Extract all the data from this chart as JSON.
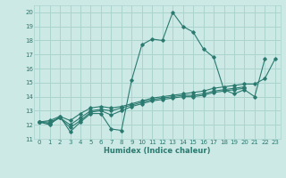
{
  "xlabel": "Humidex (Indice chaleur)",
  "background_color": "#cce9e5",
  "grid_color": "#aad4cf",
  "line_color": "#2a7a70",
  "xlim": [
    -0.5,
    23.5
  ],
  "ylim": [
    11,
    20.5
  ],
  "yticks": [
    11,
    12,
    13,
    14,
    15,
    16,
    17,
    18,
    19,
    20
  ],
  "xticks": [
    0,
    1,
    2,
    3,
    4,
    5,
    6,
    7,
    8,
    9,
    10,
    11,
    12,
    13,
    14,
    15,
    16,
    17,
    18,
    19,
    20,
    21,
    22,
    23
  ],
  "series": [
    [
      12.2,
      12.0,
      12.6,
      11.5,
      12.2,
      12.8,
      12.8,
      11.7,
      11.6,
      15.2,
      17.7,
      18.1,
      18.0,
      20.0,
      19.0,
      18.6,
      17.4,
      16.8,
      14.5,
      14.2,
      14.5,
      14.0,
      16.7,
      null
    ],
    [
      12.2,
      12.1,
      12.5,
      11.8,
      12.3,
      12.9,
      13.0,
      12.7,
      13.0,
      13.3,
      13.5,
      13.7,
      13.8,
      13.9,
      14.0,
      14.0,
      14.1,
      14.3,
      14.4,
      14.5,
      14.6,
      null,
      null,
      null
    ],
    [
      12.2,
      12.2,
      12.5,
      12.0,
      12.5,
      13.0,
      13.1,
      13.0,
      13.2,
      13.4,
      13.6,
      13.8,
      13.9,
      14.0,
      14.1,
      14.1,
      14.2,
      14.4,
      14.5,
      14.6,
      14.7,
      null,
      null,
      null
    ],
    [
      12.2,
      12.3,
      12.6,
      12.3,
      12.8,
      13.2,
      13.3,
      13.2,
      13.3,
      13.5,
      13.7,
      13.9,
      14.0,
      14.1,
      14.2,
      14.3,
      14.4,
      14.6,
      14.7,
      14.8,
      14.9,
      14.9,
      15.3,
      16.7
    ]
  ]
}
